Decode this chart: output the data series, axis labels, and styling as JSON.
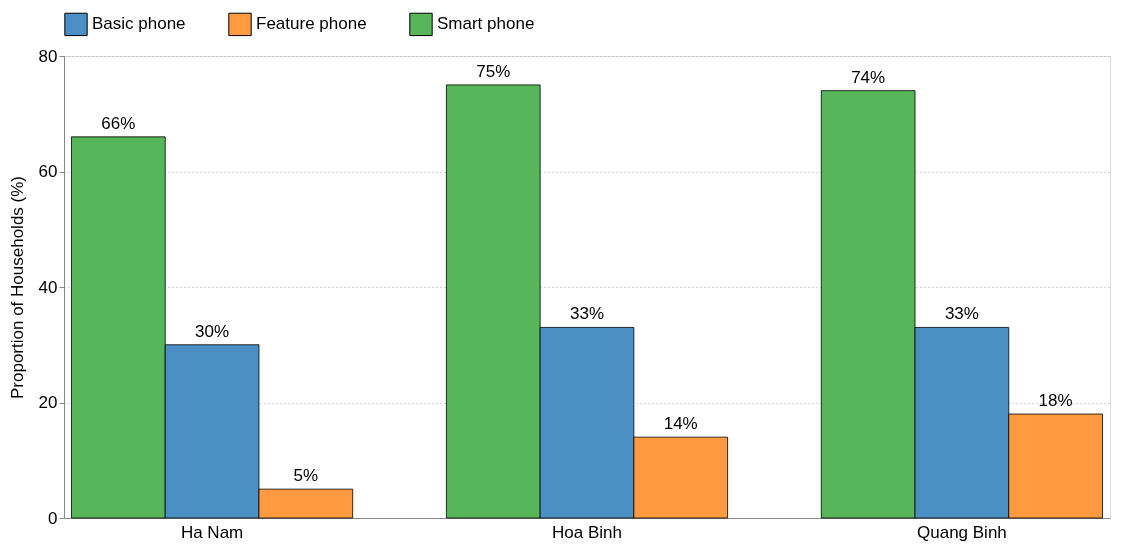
{
  "chart_data": {
    "type": "bar",
    "ylabel": "Proportion of Households (%)",
    "categories": [
      "Ha Nam",
      "Hoa Binh",
      "Quang Binh"
    ],
    "series": [
      {
        "name": "Smart phone",
        "color": "#57b55a",
        "values": [
          66,
          75,
          74
        ],
        "value_labels": [
          "66%",
          "75%",
          "74%"
        ]
      },
      {
        "name": "Basic phone",
        "color": "#4a90c4",
        "values": [
          30,
          33,
          33
        ],
        "value_labels": [
          "30%",
          "33%",
          "33%"
        ]
      },
      {
        "name": "Feature phone",
        "color": "#ff9a40",
        "values": [
          5,
          14,
          18
        ],
        "value_labels": [
          "5%",
          "14%",
          "18%"
        ]
      }
    ],
    "ylim": [
      0,
      80
    ],
    "yticks": [
      0,
      20,
      40,
      60,
      80
    ],
    "grid": "y",
    "legend": "top"
  }
}
